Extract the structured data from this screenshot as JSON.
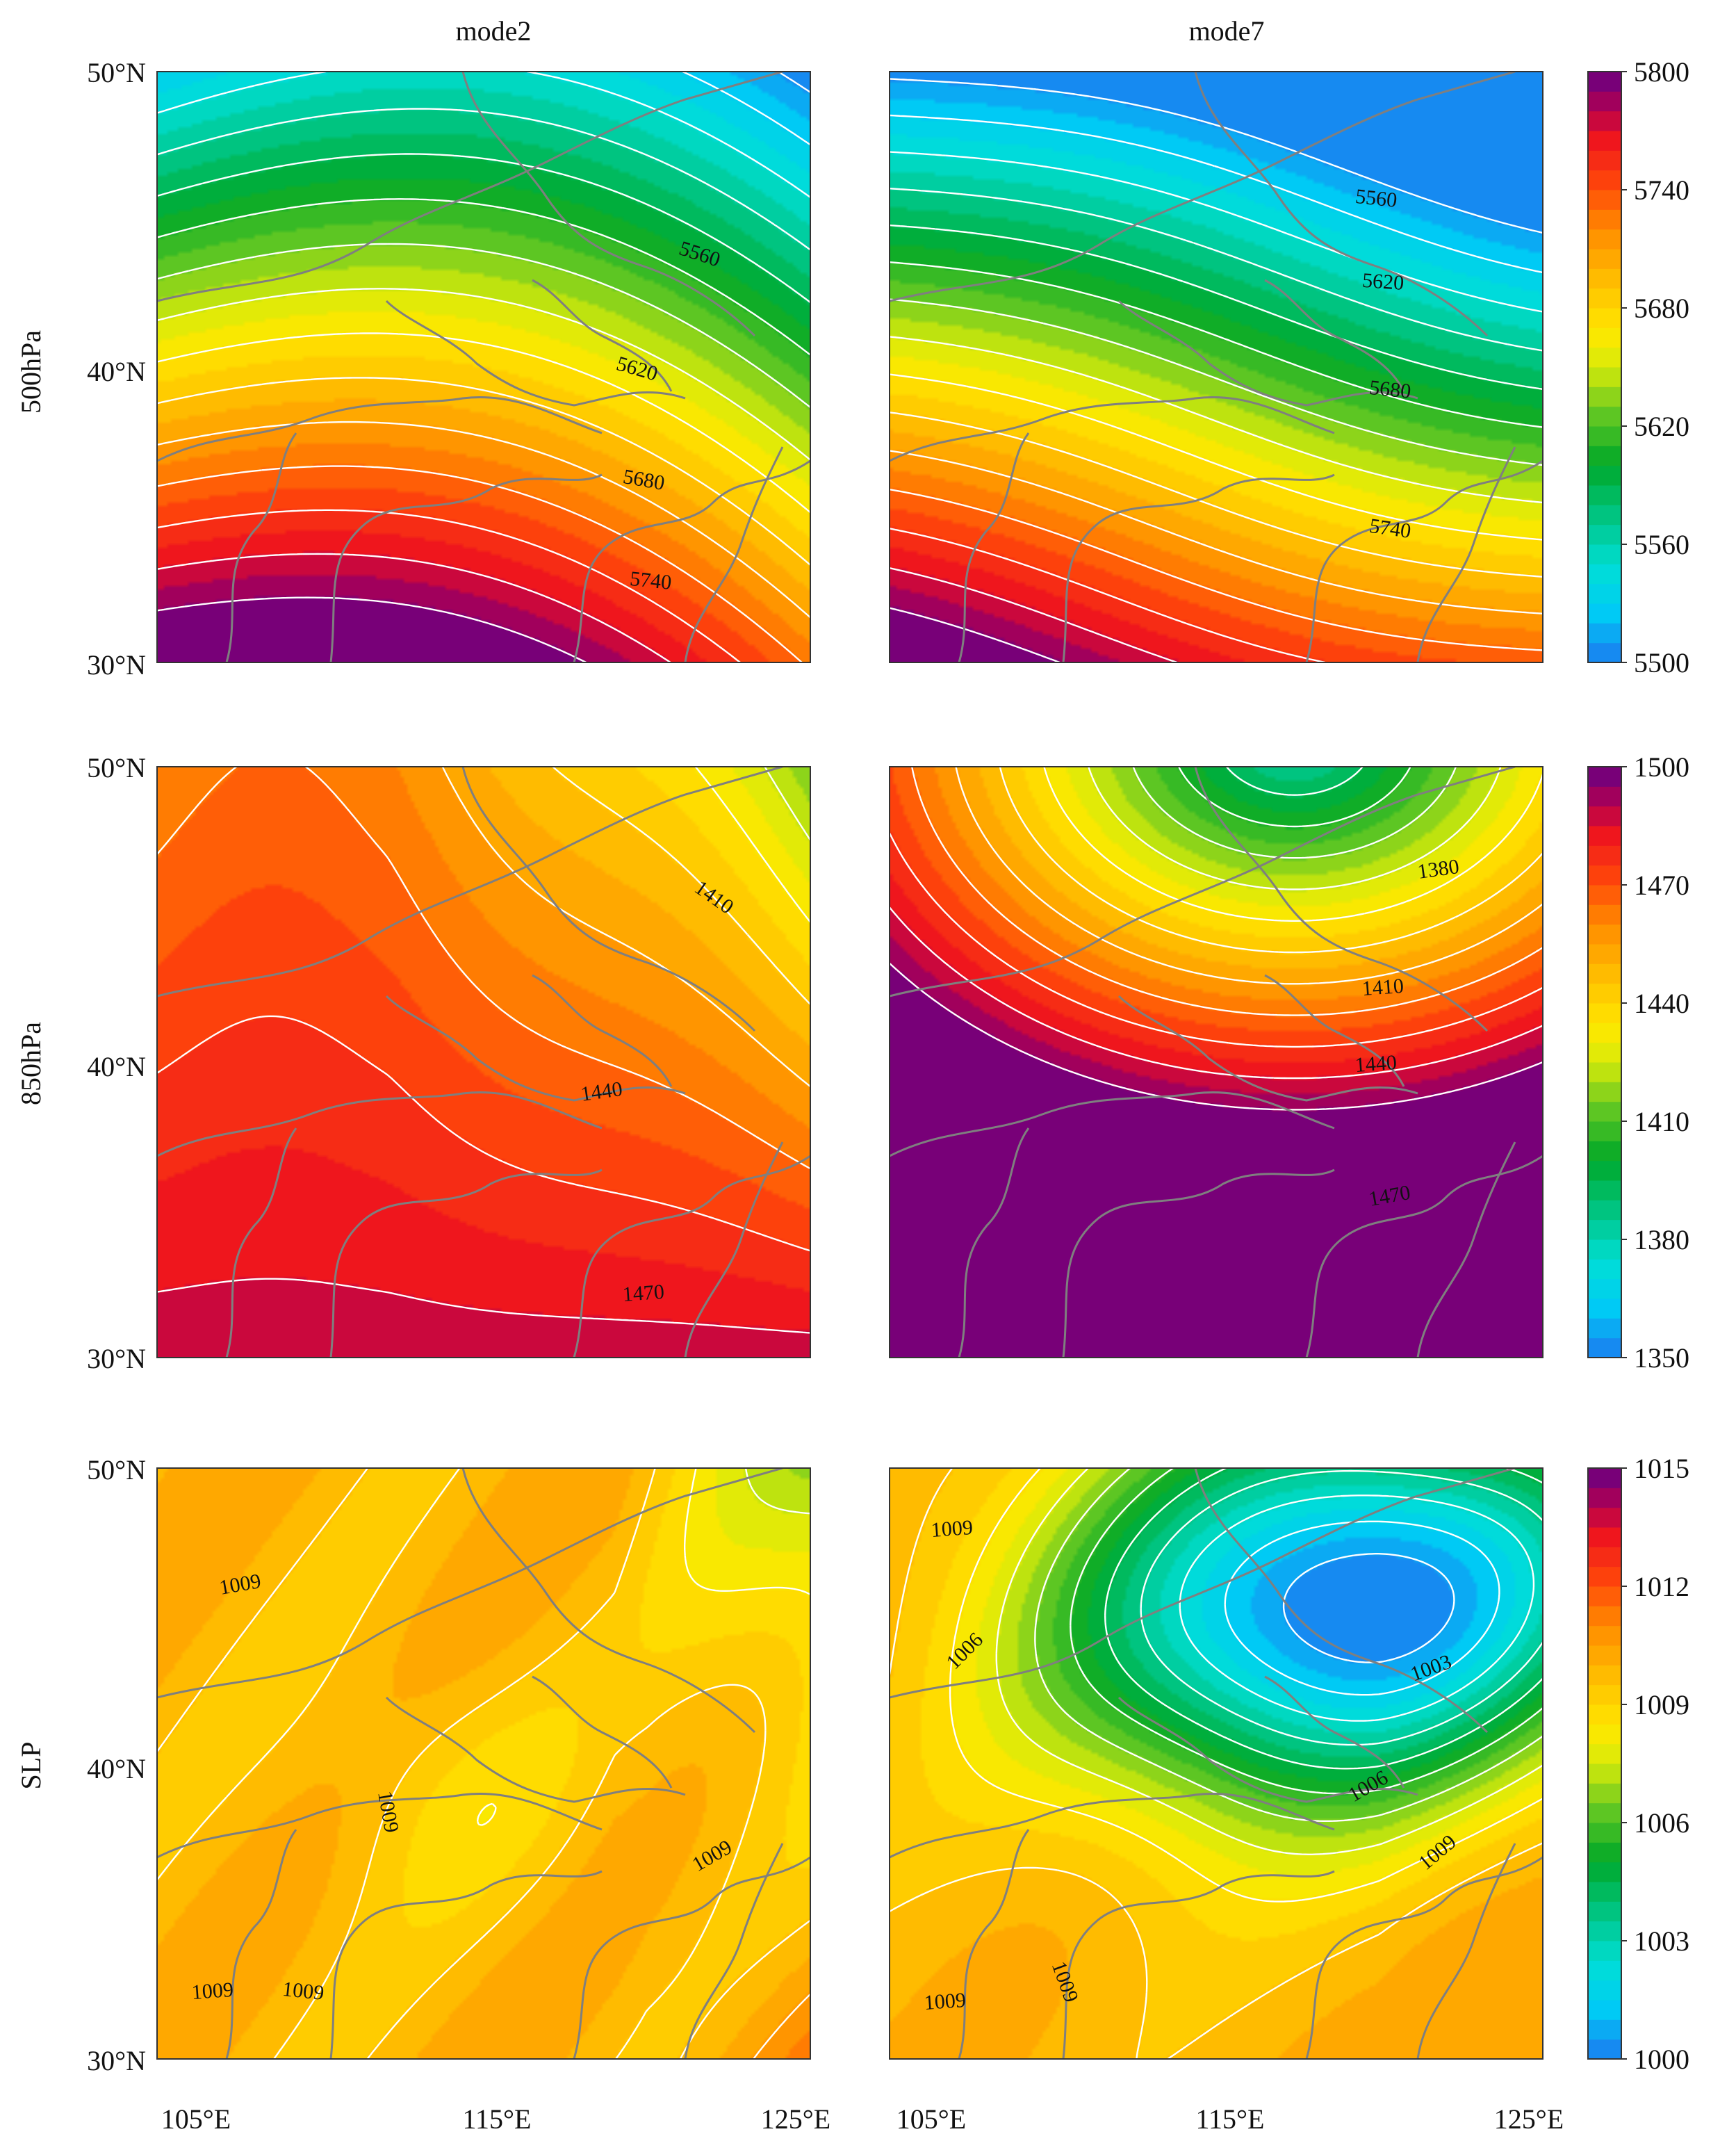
{
  "columns": [
    "mode2",
    "mode7"
  ],
  "rows": [
    "500hPa",
    "850hPa",
    "SLP"
  ],
  "lat_ticks": [
    "50°N",
    "40°N",
    "30°N"
  ],
  "lon_ticks": [
    "105°E",
    "115°E",
    "125°E"
  ],
  "colorbars": [
    {
      "min": 5500,
      "max": 5800,
      "ticks": [
        "5800",
        "5740",
        "5680",
        "5620",
        "5560",
        "5500"
      ]
    },
    {
      "min": 1350,
      "max": 1500,
      "ticks": [
        "1500",
        "1470",
        "1440",
        "1410",
        "1380",
        "1350"
      ]
    },
    {
      "min": 1000,
      "max": 1015,
      "ticks": [
        "1015",
        "1012",
        "1009",
        "1006",
        "1003",
        "1000"
      ]
    }
  ],
  "contour_labels": {
    "r0c0": [
      "5560",
      "5620",
      "5680",
      "5740"
    ],
    "r0c1": [
      "5560",
      "5620",
      "5680",
      "5740"
    ],
    "r1c0": [
      "1410",
      "1440",
      "1470"
    ],
    "r1c1": [
      "1380",
      "1410",
      "1440",
      "1470"
    ],
    "r2c0": [
      "1009",
      "1009",
      "1009",
      "1009",
      "1009"
    ],
    "r2c1": [
      "1009",
      "1006",
      "1003",
      "1006",
      "1009",
      "1009",
      "1009"
    ]
  },
  "colors": {
    "land_border": "#7f7f7f",
    "contour_line": "#ffffff"
  }
}
